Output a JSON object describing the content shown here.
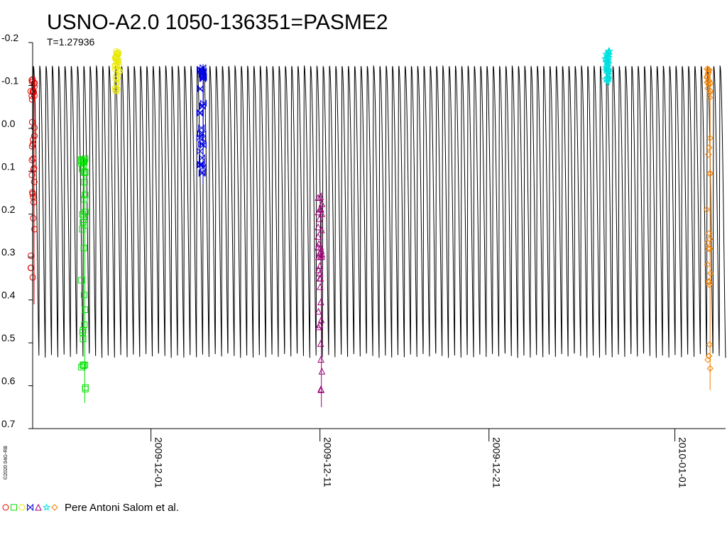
{
  "chart_data": {
    "type": "scatter",
    "title": "USNO-A2.0 1050-136351=PASME2",
    "subtitle": "T=1.27936",
    "y_inverted": true,
    "ylim": [
      -0.2,
      0.7
    ],
    "y_ticks": [
      "-0.2",
      "-0.1",
      "0.0",
      "0.1",
      "0.2",
      "0.3",
      "0.4",
      "0.5",
      "0.6",
      "0.7"
    ],
    "x_range": [
      "2009-11-24",
      "2010-01-04"
    ],
    "x_ticks": [
      "2009-12-01",
      "2009-12-11",
      "2009-12-21",
      "2010-01-01"
    ],
    "copyright": "©2020 04G-RB",
    "credit": "Pere Antoni Salom et al.",
    "model_curve": {
      "color": "#000000",
      "amplitude_range": [
        -0.145,
        0.535
      ],
      "cycles_visible": 110
    },
    "series": [
      {
        "color": "#e00000",
        "marker": "circle",
        "date": "2009-11-24",
        "y_range": [
          -0.12,
          0.41
        ],
        "y_dense_top": -0.08
      },
      {
        "color": "#00e000",
        "marker": "square",
        "date": "2009-11-27",
        "y_range": [
          0.07,
          0.64
        ],
        "y_dense_top": 0.1
      },
      {
        "color": "#e8e800",
        "marker": "circle",
        "date": "2009-11-29",
        "y_range": [
          -0.18,
          -0.08
        ],
        "y_dense_top": -0.15
      },
      {
        "color": "#0000e0",
        "marker": "bowtie",
        "date": "2009-12-04",
        "y_range": [
          -0.15,
          0.13
        ],
        "y_dense_top": -0.12
      },
      {
        "color": "#a0007a",
        "marker": "triangle",
        "date": "2009-12-11",
        "y_range": [
          0.15,
          0.65
        ],
        "y_dense_top": 0.32
      },
      {
        "color": "#00e0e0",
        "marker": "star",
        "date": "2009-12-28",
        "y_range": [
          -0.18,
          -0.1
        ],
        "y_dense_top": -0.15
      },
      {
        "color": "#f08000",
        "marker": "diamond",
        "date": "2010-01-03",
        "y_range": [
          -0.14,
          0.61
        ],
        "y_dense_top": -0.1
      }
    ]
  }
}
